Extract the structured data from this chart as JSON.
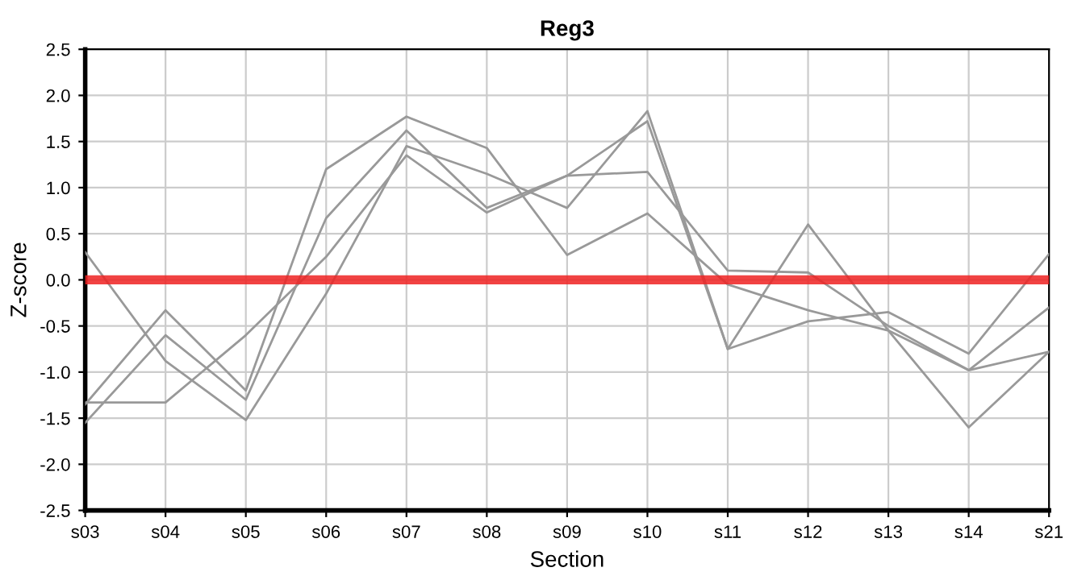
{
  "chart_data": {
    "type": "line",
    "title": "Reg3",
    "xlabel": "Section",
    "ylabel": "Z-score",
    "categories": [
      "s03",
      "s04",
      "s05",
      "s06",
      "s07",
      "s08",
      "s09",
      "s10",
      "s11",
      "s12",
      "s13",
      "s14",
      "s21"
    ],
    "series": [
      {
        "color": "#999999",
        "values": [
          0.3,
          -0.88,
          -1.52,
          -0.15,
          1.45,
          1.15,
          0.78,
          1.83,
          -0.75,
          0.6,
          -0.55,
          -0.98,
          -0.3
        ]
      },
      {
        "color": "#999999",
        "values": [
          -1.35,
          -0.33,
          -1.2,
          1.2,
          1.77,
          1.43,
          0.27,
          0.72,
          -0.05,
          -0.33,
          -0.55,
          -1.6,
          -0.78
        ]
      },
      {
        "color": "#999999",
        "values": [
          -1.55,
          -0.6,
          -1.3,
          0.67,
          1.62,
          0.78,
          1.13,
          1.72,
          -0.75,
          -0.45,
          -0.35,
          -0.8,
          0.28
        ]
      },
      {
        "color": "#999999",
        "values": [
          -1.33,
          -1.33,
          -0.6,
          0.25,
          1.35,
          0.73,
          1.13,
          1.17,
          0.1,
          0.08,
          -0.5,
          -0.98,
          -0.78
        ]
      }
    ],
    "ylim": [
      -2.5,
      2.5
    ],
    "yticks": [
      {
        "value": -2.5,
        "label": "-2.5"
      },
      {
        "value": -2.0,
        "label": "-2.0"
      },
      {
        "value": -1.5,
        "label": "-1.5"
      },
      {
        "value": -1.0,
        "label": "-1.0"
      },
      {
        "value": -0.5,
        "label": "-0.5"
      },
      {
        "value": 0.0,
        "label": "0.0"
      },
      {
        "value": 0.5,
        "label": "0.5"
      },
      {
        "value": 1.0,
        "label": "1.0"
      },
      {
        "value": 1.5,
        "label": "1.5"
      },
      {
        "value": 2.0,
        "label": "2.0"
      },
      {
        "value": 2.5,
        "label": "2.5"
      }
    ],
    "ref_lines": [
      {
        "axis": "y",
        "value": 0,
        "color": "#ee2222"
      }
    ],
    "grid": true,
    "legend": false,
    "marker": "none",
    "line_style": "solid"
  }
}
